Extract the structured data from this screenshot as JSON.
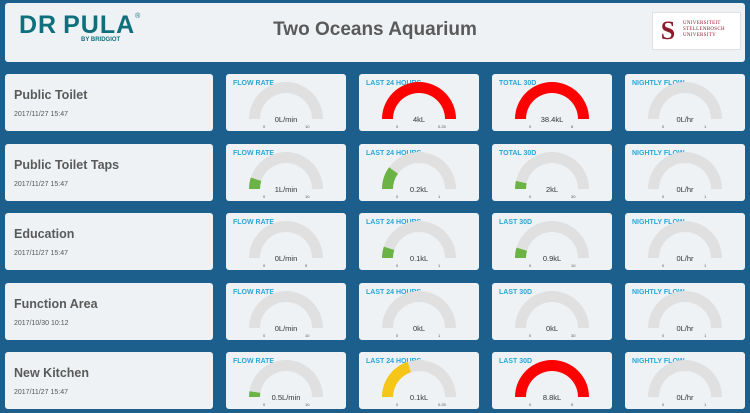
{
  "header": {
    "logo_text": "DR PULA",
    "logo_tm": "®",
    "logo_sub": "BY BRIDGIOT",
    "title": "Two Oceans Aquarium",
    "university": {
      "glyph": "S",
      "line1": "UNIVERSITEIT",
      "line2": "STELLENBOSCH",
      "line3": "UNIVERSITY"
    }
  },
  "colors": {
    "background": "#1c5f8c",
    "panel": "#eef2f5",
    "label": "#29a7d6",
    "gauge_track": "#e0e0e0"
  },
  "rows": [
    {
      "name": "Public Toilet",
      "date": "2017/11/27 15:47",
      "gauges": [
        {
          "label": "FLOW RATE",
          "value": "0L/min",
          "min": "0",
          "max": "10",
          "fraction": 0,
          "color": "#e0e0e0"
        },
        {
          "label": "LAST 24 HOURS",
          "value": "4kL",
          "min": "0",
          "max": "0.25",
          "fraction": 1,
          "color": "#ff0000"
        },
        {
          "label": "TOTAL 30D",
          "value": "38.4kL",
          "min": "0",
          "max": "8",
          "fraction": 1,
          "color": "#ff0000"
        },
        {
          "label": "NIGHTLY FLOW",
          "value": "0L/hr",
          "min": "0",
          "max": "1",
          "fraction": 0,
          "color": "#e0e0e0"
        }
      ]
    },
    {
      "name": "Public Toilet Taps",
      "date": "2017/11/27 15:47",
      "gauges": [
        {
          "label": "FLOW RATE",
          "value": "1L/min",
          "min": "0",
          "max": "10",
          "fraction": 0.1,
          "color": "#6ab344"
        },
        {
          "label": "LAST 24 HOURS",
          "value": "0.2kL",
          "min": "0",
          "max": "1",
          "fraction": 0.2,
          "color": "#6ab344"
        },
        {
          "label": "TOTAL 30D",
          "value": "2kL",
          "min": "0",
          "max": "30",
          "fraction": 0.07,
          "color": "#6ab344"
        },
        {
          "label": "NIGHTLY FLOW",
          "value": "0L/hr",
          "min": "0",
          "max": "1",
          "fraction": 0,
          "color": "#e0e0e0"
        }
      ]
    },
    {
      "name": "Education",
      "date": "2017/11/27 15:47",
      "gauges": [
        {
          "label": "FLOW RATE",
          "value": "0L/min",
          "min": "0",
          "max": "5",
          "fraction": 0,
          "color": "#e0e0e0"
        },
        {
          "label": "LAST 24 HOURS",
          "value": "0.1kL",
          "min": "0",
          "max": "1",
          "fraction": 0.1,
          "color": "#6ab344"
        },
        {
          "label": "LAST 30D",
          "value": "0.9kL",
          "min": "0",
          "max": "10",
          "fraction": 0.09,
          "color": "#6ab344"
        },
        {
          "label": "NIGHTLY FLOW",
          "value": "0L/hr",
          "min": "0",
          "max": "1",
          "fraction": 0,
          "color": "#e0e0e0"
        }
      ]
    },
    {
      "name": "Function Area",
      "date": "2017/10/30 10:12",
      "gauges": [
        {
          "label": "FLOW RATE",
          "value": "0L/min",
          "min": "0",
          "max": "10",
          "fraction": 0,
          "color": "#e0e0e0"
        },
        {
          "label": "LAST 24 HOURS",
          "value": "0kL",
          "min": "0",
          "max": "1",
          "fraction": 0,
          "color": "#e0e0e0"
        },
        {
          "label": "LAST 30D",
          "value": "0kL",
          "min": "0",
          "max": "30",
          "fraction": 0,
          "color": "#e0e0e0"
        },
        {
          "label": "NIGHTLY FLOW",
          "value": "0L/hr",
          "min": "0",
          "max": "1",
          "fraction": 0,
          "color": "#e0e0e0"
        }
      ]
    },
    {
      "name": "New Kitchen",
      "date": "2017/11/27 15:47",
      "gauges": [
        {
          "label": "FLOW RATE",
          "value": "0.5L/min",
          "min": "0",
          "max": "10",
          "fraction": 0.05,
          "color": "#6ab344"
        },
        {
          "label": "LAST 24 HOURS",
          "value": "0.1kL",
          "min": "0",
          "max": "0.25",
          "fraction": 0.4,
          "color": "#f5c518"
        },
        {
          "label": "LAST 30D",
          "value": "8.8kL",
          "min": "0",
          "max": "5",
          "fraction": 1,
          "color": "#ff0000"
        },
        {
          "label": "NIGHTLY FLOW",
          "value": "0L/hr",
          "min": "0",
          "max": "1",
          "fraction": 0,
          "color": "#e0e0e0"
        }
      ]
    }
  ]
}
